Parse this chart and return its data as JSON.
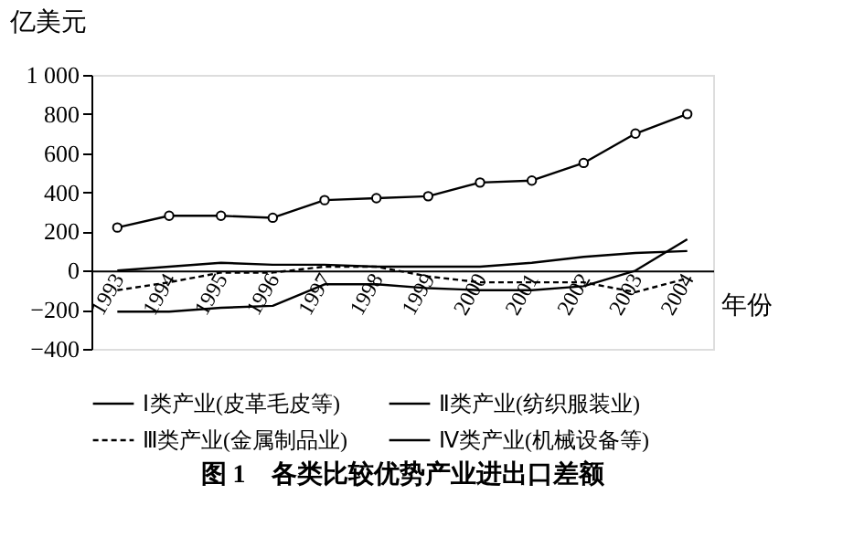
{
  "chart_data": {
    "type": "line",
    "title": "图 1　各类比较优势产业进出口差额",
    "ylabel": "亿美元",
    "xlabel": "年份",
    "categories": [
      "1993",
      "1994",
      "1995",
      "1996",
      "1997",
      "1998",
      "1999",
      "2000",
      "2001",
      "2002",
      "2003",
      "2004"
    ],
    "ylim": [
      -400,
      1000
    ],
    "yticks": [
      -400,
      -200,
      0,
      200,
      400,
      600,
      800,
      {
        "value": 1000,
        "label": "1 000"
      }
    ],
    "legend": "bottom",
    "grid": false,
    "series": [
      {
        "name": "Ⅰ类产业(皮革毛皮等)",
        "color": "#000000",
        "line_style": "solid",
        "marker": "none",
        "values": [
          0,
          20,
          40,
          30,
          30,
          20,
          20,
          20,
          40,
          70,
          90,
          100
        ]
      },
      {
        "name": "Ⅱ类产业(纺织服装业)",
        "color": "#000000",
        "line_style": "solid",
        "marker": "circle",
        "values": [
          220,
          280,
          280,
          270,
          360,
          370,
          380,
          450,
          460,
          550,
          700,
          800
        ]
      },
      {
        "name": "Ⅲ类产业(金属制品业)",
        "color": "#000000",
        "line_style": "dashed",
        "marker": "none",
        "values": [
          -100,
          -60,
          -10,
          -10,
          20,
          20,
          -30,
          -60,
          -60,
          -60,
          -110,
          -40
        ]
      },
      {
        "name": "Ⅳ类产业(机械设备等)",
        "color": "#000000",
        "line_style": "solid",
        "marker": "none",
        "values": [
          -210,
          -210,
          -190,
          -180,
          -70,
          -70,
          -90,
          -100,
          -100,
          -80,
          0,
          160
        ]
      }
    ]
  }
}
